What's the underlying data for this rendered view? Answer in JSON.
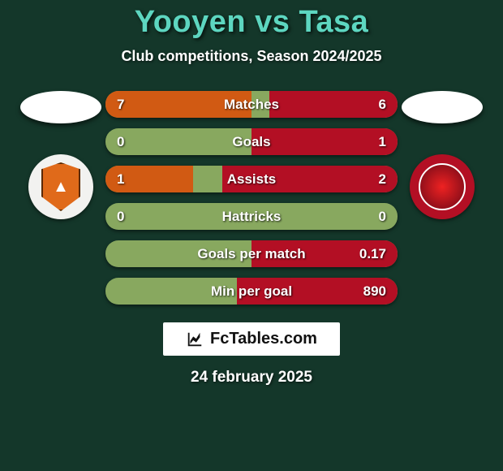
{
  "background_color": "#14372a",
  "title": {
    "text": "Yooyen vs Tasa",
    "color": "#5dd6c0",
    "fontsize": 38
  },
  "subtitle": {
    "text": "Club competitions, Season 2024/2025",
    "color": "#ffffff",
    "fontsize": 18
  },
  "track_color": "#88a85f",
  "left": {
    "fill_color": "#d15a13",
    "avatar_bg": "#ffffff"
  },
  "right": {
    "fill_color": "#b30f24",
    "avatar_bg": "#ffffff"
  },
  "bars": [
    {
      "label": "Matches",
      "left_value": "7",
      "right_value": "6",
      "left_pct": 50,
      "right_pct": 44
    },
    {
      "label": "Goals",
      "left_value": "0",
      "right_value": "1",
      "left_pct": 0,
      "right_pct": 50
    },
    {
      "label": "Assists",
      "left_value": "1",
      "right_value": "2",
      "left_pct": 30,
      "right_pct": 60
    },
    {
      "label": "Hattricks",
      "left_value": "0",
      "right_value": "0",
      "left_pct": 0,
      "right_pct": 0
    },
    {
      "label": "Goals per match",
      "left_value": "",
      "right_value": "0.17",
      "left_pct": 0,
      "right_pct": 50
    },
    {
      "label": "Min per goal",
      "left_value": "",
      "right_value": "890",
      "left_pct": 0,
      "right_pct": 55
    }
  ],
  "brand": {
    "text": "FcTables.com",
    "bg": "#ffffff",
    "color": "#111111"
  },
  "date": "24 february 2025"
}
